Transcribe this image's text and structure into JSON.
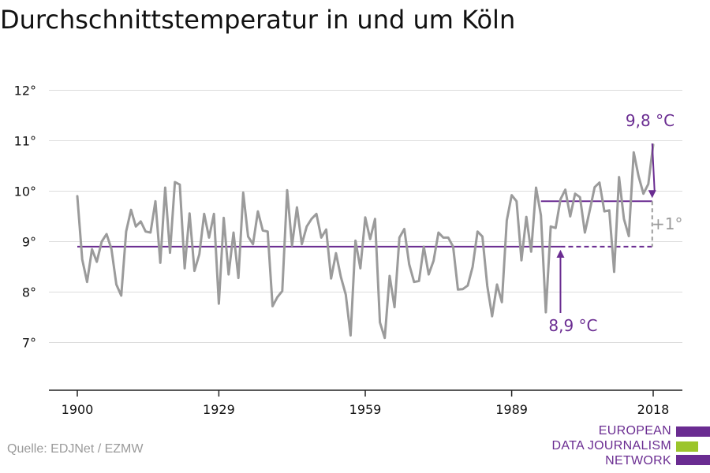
{
  "title": "Durchschnittstemperatur in und um Köln",
  "source": "Quelle: EDJNet / EZMW",
  "logo": {
    "lines": [
      "EUROPEAN",
      "DATA JOURNALISM",
      "NETWORK"
    ],
    "colors": {
      "purple": "#6a2c91",
      "green": "#9bc52b"
    }
  },
  "chart_data": {
    "type": "line",
    "x_ticks": [
      1900,
      1929,
      1959,
      1989,
      2018
    ],
    "x_range": [
      1900,
      2018
    ],
    "y_ticks": [
      {
        "value": 7,
        "label": "7°"
      },
      {
        "value": 8,
        "label": "8°"
      },
      {
        "value": 9,
        "label": "9°"
      },
      {
        "value": 10,
        "label": "10°"
      },
      {
        "value": 11,
        "label": "11°"
      },
      {
        "value": 12,
        "label": "12°"
      }
    ],
    "ylim": [
      6,
      12
    ],
    "grid": true,
    "line_color": "#9b9b9b",
    "accent_color": "#6a2c91",
    "x": [
      1900,
      1901,
      1902,
      1903,
      1904,
      1905,
      1906,
      1907,
      1908,
      1909,
      1910,
      1911,
      1912,
      1913,
      1914,
      1915,
      1916,
      1917,
      1918,
      1919,
      1920,
      1921,
      1922,
      1923,
      1924,
      1925,
      1926,
      1927,
      1928,
      1929,
      1930,
      1931,
      1932,
      1933,
      1934,
      1935,
      1936,
      1937,
      1938,
      1939,
      1940,
      1941,
      1942,
      1943,
      1944,
      1945,
      1946,
      1947,
      1948,
      1949,
      1950,
      1951,
      1952,
      1953,
      1954,
      1955,
      1956,
      1957,
      1958,
      1959,
      1960,
      1961,
      1962,
      1963,
      1964,
      1965,
      1966,
      1967,
      1968,
      1969,
      1970,
      1971,
      1972,
      1973,
      1974,
      1975,
      1976,
      1977,
      1978,
      1979,
      1980,
      1981,
      1982,
      1983,
      1984,
      1985,
      1986,
      1987,
      1988,
      1989,
      1990,
      1991,
      1992,
      1993,
      1994,
      1995,
      1996,
      1997,
      1998,
      1999,
      2000,
      2001,
      2002,
      2003,
      2004,
      2005,
      2006,
      2007,
      2008,
      2009,
      2010,
      2011,
      2012,
      2013,
      2014,
      2015,
      2016,
      2017,
      2018
    ],
    "values": [
      9.9,
      8.65,
      8.2,
      8.85,
      8.6,
      9.0,
      9.15,
      8.85,
      8.15,
      7.93,
      9.2,
      9.63,
      9.3,
      9.4,
      9.2,
      9.18,
      9.8,
      8.58,
      10.07,
      8.78,
      10.18,
      10.13,
      8.47,
      9.56,
      8.42,
      8.75,
      9.55,
      9.08,
      9.55,
      7.77,
      9.47,
      8.35,
      9.18,
      8.28,
      9.97,
      9.1,
      8.95,
      9.6,
      9.22,
      9.2,
      7.72,
      7.9,
      8.02,
      10.02,
      8.92,
      9.68,
      8.95,
      9.3,
      9.45,
      9.55,
      9.08,
      9.24,
      8.27,
      8.77,
      8.3,
      7.95,
      7.14,
      9.02,
      8.47,
      9.48,
      9.05,
      9.45,
      7.4,
      7.09,
      8.32,
      7.7,
      9.08,
      9.25,
      8.55,
      8.2,
      8.22,
      8.9,
      8.35,
      8.62,
      9.18,
      9.08,
      9.08,
      8.9,
      8.05,
      8.06,
      8.13,
      8.5,
      9.2,
      9.1,
      8.12,
      7.52,
      8.15,
      7.8,
      9.42,
      9.92,
      9.8,
      8.63,
      9.49,
      8.8,
      10.07,
      9.52,
      7.6,
      9.3,
      9.27,
      9.84,
      10.03,
      9.5,
      9.95,
      9.88,
      9.18,
      9.62,
      10.08,
      10.17,
      9.6,
      9.62,
      8.4,
      10.28,
      9.45,
      9.11,
      10.77,
      10.3,
      9.95,
      10.14,
      10.92
    ],
    "reference_lines": [
      {
        "value": 8.9,
        "label": "8,9 °C"
      },
      {
        "value": 9.8,
        "label": "9,8 °C"
      }
    ],
    "difference_label": "+1°"
  }
}
